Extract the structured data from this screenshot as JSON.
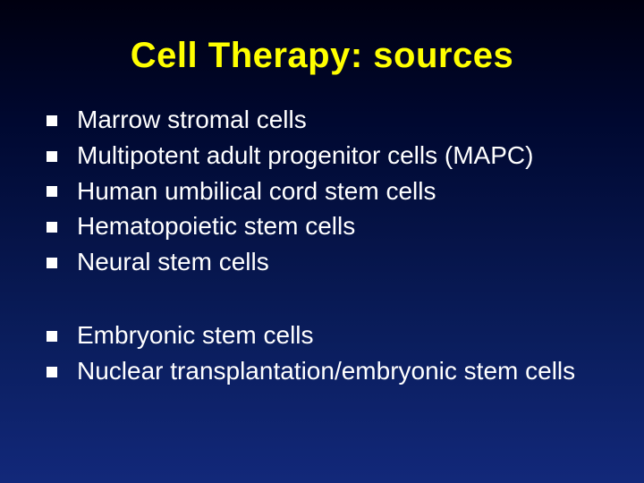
{
  "slide": {
    "title": "Cell Therapy: sources",
    "title_color": "#ffff00",
    "title_fontsize": 40,
    "title_fontweight": "bold",
    "body_color": "#ffffff",
    "body_fontsize": 28,
    "bullet_marker_color": "#ffffff",
    "bullet_marker_size": 12,
    "background_gradient": [
      "#000010",
      "#000830",
      "#0a1d5c",
      "#12287a"
    ],
    "groups": [
      {
        "items": [
          "Marrow stromal cells",
          "Multipotent adult progenitor cells (MAPC)",
          "Human umbilical cord stem cells",
          "Hematopoietic stem cells",
          "Neural stem cells"
        ]
      },
      {
        "items": [
          "Embryonic stem cells",
          "Nuclear transplantation/embryonic stem cells"
        ]
      }
    ]
  }
}
